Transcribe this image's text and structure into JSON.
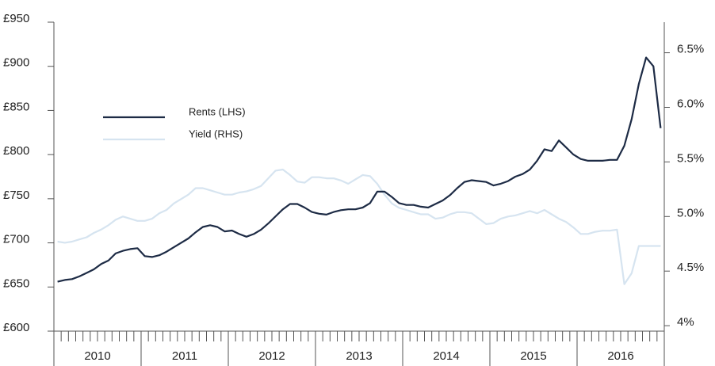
{
  "chart_data": {
    "type": "line",
    "categories": [
      "2010",
      null,
      null,
      null,
      null,
      null,
      null,
      null,
      null,
      null,
      null,
      null,
      "2011",
      null,
      null,
      null,
      null,
      null,
      null,
      null,
      null,
      null,
      null,
      null,
      "2012",
      null,
      null,
      null,
      null,
      null,
      null,
      null,
      null,
      null,
      null,
      null,
      "2013",
      null,
      null,
      null,
      null,
      null,
      null,
      null,
      null,
      null,
      null,
      null,
      "2014",
      null,
      null,
      null,
      null,
      null,
      null,
      null,
      null,
      null,
      null,
      null,
      "2015",
      null,
      null,
      null,
      null,
      null,
      null,
      null,
      null,
      null,
      null,
      null,
      "2016",
      null,
      null,
      null,
      null,
      null,
      null,
      null,
      null,
      null,
      null,
      null
    ],
    "series": [
      {
        "name": "Rents (LHS)",
        "color": "#1d2b45",
        "axis": "y",
        "values": [
          656,
          658,
          659,
          662,
          666,
          670,
          676,
          680,
          688,
          691,
          693,
          694,
          685,
          684,
          686,
          690,
          695,
          700,
          705,
          712,
          718,
          720,
          718,
          713,
          714,
          710,
          707,
          710,
          715,
          722,
          730,
          738,
          744,
          744,
          740,
          735,
          733,
          732,
          735,
          737,
          738,
          738,
          740,
          745,
          758,
          758,
          752,
          745,
          743,
          743,
          741,
          740,
          744,
          748,
          754,
          762,
          769,
          771,
          770,
          769,
          765,
          767,
          770,
          775,
          778,
          783,
          793,
          806,
          804,
          816,
          808,
          800,
          795,
          793,
          793,
          793,
          794,
          794,
          810,
          840,
          880,
          910,
          900,
          830
        ]
      },
      {
        "name": "Yield (RHS)",
        "color": "#d6e4f0",
        "axis": "y2",
        "values": [
          4.77,
          4.76,
          4.77,
          4.79,
          4.81,
          4.85,
          4.88,
          4.92,
          4.97,
          5.0,
          4.98,
          4.96,
          4.96,
          4.98,
          5.03,
          5.06,
          5.12,
          5.16,
          5.2,
          5.26,
          5.26,
          5.24,
          5.22,
          5.2,
          5.2,
          5.22,
          5.23,
          5.25,
          5.28,
          5.35,
          5.42,
          5.43,
          5.38,
          5.32,
          5.31,
          5.36,
          5.36,
          5.35,
          5.35,
          5.33,
          5.3,
          5.34,
          5.38,
          5.37,
          5.3,
          5.2,
          5.12,
          5.08,
          5.06,
          5.04,
          5.02,
          5.02,
          4.98,
          4.99,
          5.02,
          5.04,
          5.04,
          5.03,
          4.98,
          4.93,
          4.94,
          4.98,
          5.0,
          5.01,
          5.03,
          5.05,
          5.03,
          5.06,
          5.02,
          4.98,
          4.95,
          4.9,
          4.84,
          4.84,
          4.86,
          4.87,
          4.87,
          4.88,
          4.38,
          4.48,
          4.73,
          4.73,
          4.73,
          4.73
        ]
      }
    ],
    "ylim": [
      600,
      950
    ],
    "yticks": [
      {
        "value": 600,
        "label": "£600"
      },
      {
        "value": 650,
        "label": "£650"
      },
      {
        "value": 700,
        "label": "£700"
      },
      {
        "value": 750,
        "label": "£750"
      },
      {
        "value": 800,
        "label": "£800"
      },
      {
        "value": 850,
        "label": "£850"
      },
      {
        "value": 900,
        "label": "£900"
      },
      {
        "value": 950,
        "label": "£950"
      }
    ],
    "y2lim": [
      3.95,
      6.78
    ],
    "y2ticks": [
      {
        "value": 4,
        "label": "4%"
      },
      {
        "value": 4.5,
        "label": "4.5%"
      },
      {
        "value": 5,
        "label": "5.0%"
      },
      {
        "value": 5.5,
        "label": "5.5%"
      },
      {
        "value": 6,
        "label": "6.0%"
      },
      {
        "value": 6.5,
        "label": "6.5%"
      }
    ],
    "legend": "upper left",
    "grid": false
  }
}
